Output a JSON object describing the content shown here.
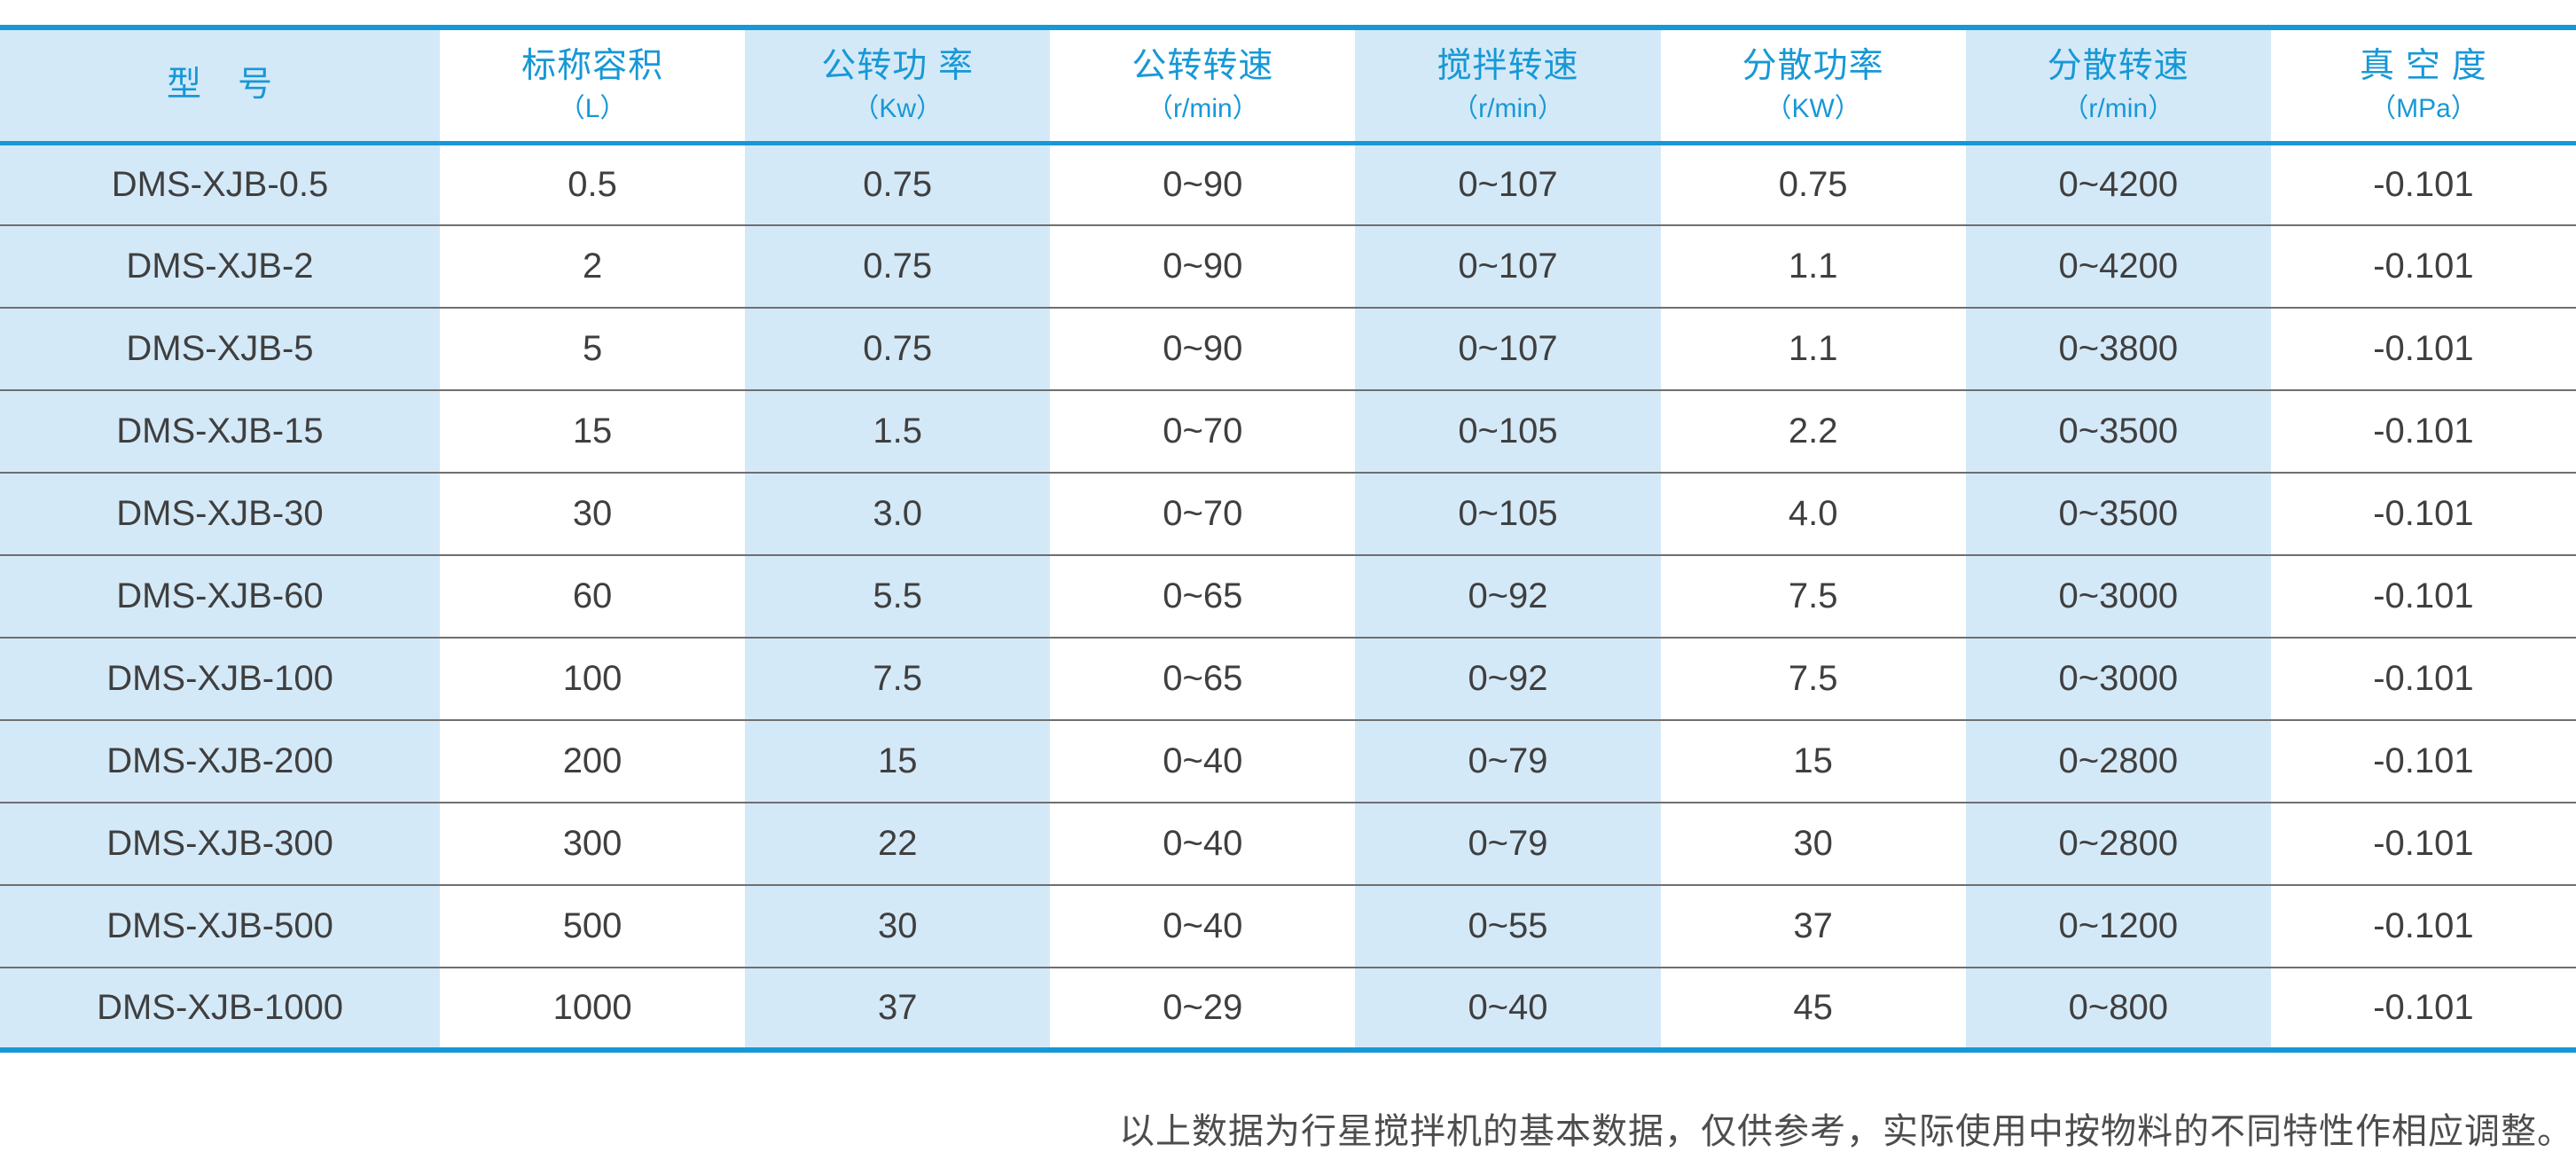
{
  "colors": {
    "border_blue": "#1798d6",
    "header_text_blue": "#1798d6",
    "cell_light_blue": "#d4e9f8",
    "cell_white": "#ffffff",
    "body_text": "#3f3f3f",
    "row_separator": "#6f6f6f",
    "note_text": "#4d4d4d"
  },
  "table": {
    "columns": [
      {
        "name": "型　号",
        "unit": ""
      },
      {
        "name": "标称容积",
        "unit": "（L）"
      },
      {
        "name": "公转功 率",
        "unit": "（Kw）"
      },
      {
        "name": "公转转速",
        "unit": "（r/min）"
      },
      {
        "name": "搅拌转速",
        "unit": "（r/min）"
      },
      {
        "name": "分散功率",
        "unit": "（KW）"
      },
      {
        "name": "分散转速",
        "unit": "（r/min）"
      },
      {
        "name": "真 空 度",
        "unit": "（MPa）"
      }
    ],
    "rows": [
      [
        "DMS-XJB-0.5",
        "0.5",
        "0.75",
        "0~90",
        "0~107",
        "0.75",
        "0~4200",
        "-0.101"
      ],
      [
        "DMS-XJB-2",
        "2",
        "0.75",
        "0~90",
        "0~107",
        "1.1",
        "0~4200",
        "-0.101"
      ],
      [
        "DMS-XJB-5",
        "5",
        "0.75",
        "0~90",
        "0~107",
        "1.1",
        "0~3800",
        "-0.101"
      ],
      [
        "DMS-XJB-15",
        "15",
        "1.5",
        "0~70",
        "0~105",
        "2.2",
        "0~3500",
        "-0.101"
      ],
      [
        "DMS-XJB-30",
        "30",
        "3.0",
        "0~70",
        "0~105",
        "4.0",
        "0~3500",
        "-0.101"
      ],
      [
        "DMS-XJB-60",
        "60",
        "5.5",
        "0~65",
        "0~92",
        "7.5",
        "0~3000",
        "-0.101"
      ],
      [
        "DMS-XJB-100",
        "100",
        "7.5",
        "0~65",
        "0~92",
        "7.5",
        "0~3000",
        "-0.101"
      ],
      [
        "DMS-XJB-200",
        "200",
        "15",
        "0~40",
        "0~79",
        "15",
        "0~2800",
        "-0.101"
      ],
      [
        "DMS-XJB-300",
        "300",
        "22",
        "0~40",
        "0~79",
        "30",
        "0~2800",
        "-0.101"
      ],
      [
        "DMS-XJB-500",
        "500",
        "30",
        "0~40",
        "0~55",
        "37",
        "0~1200",
        "-0.101"
      ],
      [
        "DMS-XJB-1000",
        "1000",
        "37",
        "0~29",
        "0~40",
        "45",
        "0~800",
        "-0.101"
      ]
    ]
  },
  "footer": {
    "note": "以上数据为行星搅拌机的基本数据，仅供参考，实际使用中按物料的不同特性作相应调整。"
  },
  "chart_data": {
    "type": "table",
    "title": "行星搅拌机基本参数表",
    "columns": [
      "型号",
      "标称容积（L）",
      "公转功率（Kw）",
      "公转转速（r/min）",
      "搅拌转速（r/min）",
      "分散功率（KW）",
      "分散转速（r/min）",
      "真空度（MPa）"
    ],
    "rows": [
      [
        "DMS-XJB-0.5",
        "0.5",
        "0.75",
        "0~90",
        "0~107",
        "0.75",
        "0~4200",
        "-0.101"
      ],
      [
        "DMS-XJB-2",
        "2",
        "0.75",
        "0~90",
        "0~107",
        "1.1",
        "0~4200",
        "-0.101"
      ],
      [
        "DMS-XJB-5",
        "5",
        "0.75",
        "0~90",
        "0~107",
        "1.1",
        "0~3800",
        "-0.101"
      ],
      [
        "DMS-XJB-15",
        "15",
        "1.5",
        "0~70",
        "0~105",
        "2.2",
        "0~3500",
        "-0.101"
      ],
      [
        "DMS-XJB-30",
        "30",
        "3.0",
        "0~70",
        "0~105",
        "4.0",
        "0~3500",
        "-0.101"
      ],
      [
        "DMS-XJB-60",
        "60",
        "5.5",
        "0~65",
        "0~92",
        "7.5",
        "0~3000",
        "-0.101"
      ],
      [
        "DMS-XJB-100",
        "100",
        "7.5",
        "0~65",
        "0~92",
        "7.5",
        "0~3000",
        "-0.101"
      ],
      [
        "DMS-XJB-200",
        "200",
        "15",
        "0~40",
        "0~79",
        "15",
        "0~2800",
        "-0.101"
      ],
      [
        "DMS-XJB-300",
        "300",
        "22",
        "0~40",
        "0~79",
        "30",
        "0~2800",
        "-0.101"
      ],
      [
        "DMS-XJB-500",
        "500",
        "30",
        "0~40",
        "0~55",
        "37",
        "0~1200",
        "-0.101"
      ],
      [
        "DMS-XJB-1000",
        "1000",
        "37",
        "0~29",
        "0~40",
        "45",
        "0~800",
        "-0.101"
      ]
    ]
  }
}
